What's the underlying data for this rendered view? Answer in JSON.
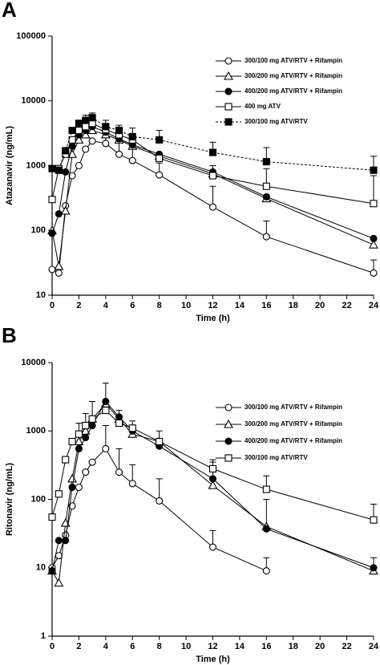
{
  "chart_data": [
    {
      "type": "line",
      "panel": "A",
      "ylabel": "Atazanavir (ng/mL)",
      "xlabel": "Time (h)",
      "log_y": true,
      "legend": "upper right",
      "xlim": [
        0,
        24
      ],
      "xticks": [
        0,
        2,
        4,
        6,
        8,
        10,
        12,
        14,
        16,
        18,
        20,
        22,
        24
      ],
      "ylim": [
        10,
        100000
      ],
      "yticks": [
        10,
        100,
        1000,
        10000,
        100000
      ],
      "x": [
        0,
        0.5,
        1,
        1.5,
        2,
        2.5,
        3,
        4,
        5,
        6,
        8,
        12,
        16,
        24
      ],
      "series": [
        {
          "name": "300/100 mg ATV/RTV + Rifampin",
          "color": "#000000",
          "marker": "circle-open",
          "dashed": false,
          "values": [
            25,
            22,
            240,
            700,
            1000,
            1800,
            2400,
            2200,
            1500,
            1200,
            720,
            230,
            80,
            22
          ],
          "upper": [
            null,
            null,
            null,
            null,
            null,
            null,
            null,
            3100,
            2300,
            1800,
            1100,
            480,
            140,
            35
          ]
        },
        {
          "name": "300/200 mg ATV/RTV + Rifampin",
          "color": "#000000",
          "marker": "triangle-open",
          "dashed": false,
          "values": [
            100,
            28,
            200,
            1500,
            2500,
            3000,
            3500,
            3000,
            2500,
            2000,
            1400,
            750,
            310,
            60
          ]
        },
        {
          "name": "400/200 mg ATV/RTV + Rifampin",
          "color": "#000000",
          "marker": "circle-filled",
          "dashed": false,
          "values": [
            90,
            180,
            800,
            2000,
            3000,
            3500,
            4000,
            3300,
            2600,
            2100,
            1500,
            800,
            330,
            75
          ]
        },
        {
          "name": "400 mg ATV",
          "color": "#000000",
          "marker": "square-open",
          "dashed": false,
          "values": [
            300,
            900,
            1500,
            2500,
            3500,
            4000,
            4500,
            3600,
            3000,
            2500,
            1300,
            700,
            480,
            260
          ],
          "upper": [
            null,
            null,
            null,
            null,
            null,
            null,
            null,
            null,
            null,
            null,
            null,
            1000,
            900,
            700
          ]
        },
        {
          "name": "300/100 mg ATV/RTV",
          "color": "#000000",
          "marker": "square-filled",
          "dashed": true,
          "values": [
            900,
            850,
            1700,
            3500,
            4500,
            5000,
            5500,
            4000,
            3500,
            2800,
            2500,
            1600,
            1150,
            850
          ],
          "upper": [
            null,
            null,
            null,
            null,
            null,
            6000,
            6500,
            5000,
            4200,
            3800,
            3500,
            2300,
            1900,
            1400
          ]
        }
      ]
    },
    {
      "type": "line",
      "panel": "B",
      "ylabel": "Ritonavir (ng/mL)",
      "xlabel": "Time (h)",
      "log_y": true,
      "legend": "upper right",
      "xlim": [
        0,
        24
      ],
      "xticks": [
        0,
        2,
        4,
        6,
        8,
        10,
        12,
        14,
        16,
        18,
        20,
        22,
        24
      ],
      "ylim": [
        1,
        10000
      ],
      "yticks": [
        1,
        10,
        100,
        1000,
        10000
      ],
      "x": [
        0,
        0.5,
        1,
        1.5,
        2,
        2.5,
        3,
        4,
        5,
        6,
        8,
        12,
        16,
        24
      ],
      "series": [
        {
          "name": "300/100 mg ATV/RTV + Rifampin",
          "color": "#000000",
          "marker": "circle-open",
          "dashed": false,
          "values": [
            10,
            15,
            30,
            80,
            150,
            250,
            350,
            550,
            250,
            170,
            95,
            20,
            9,
            null
          ],
          "upper": [
            null,
            null,
            null,
            null,
            null,
            null,
            null,
            1200,
            550,
            320,
            200,
            35,
            14,
            null
          ]
        },
        {
          "name": "300/200 mg ATV/RTV + Rifampin",
          "color": "#000000",
          "marker": "triangle-open",
          "dashed": false,
          "values": [
            9,
            6,
            45,
            200,
            700,
            1000,
            1500,
            2500,
            1500,
            900,
            700,
            160,
            40,
            9
          ],
          "upper": [
            null,
            null,
            null,
            null,
            1300,
            1800,
            2700,
            5000,
            2000,
            1400,
            1000,
            380,
            100,
            14
          ]
        },
        {
          "name": "400/200 mg ATV/RTV + Rifampin",
          "color": "#000000",
          "marker": "circle-filled",
          "dashed": false,
          "values": [
            9,
            25,
            25,
            150,
            550,
            800,
            1200,
            2700,
            1600,
            1000,
            600,
            200,
            37,
            10
          ]
        },
        {
          "name": "300/100 mg ATV/RTV",
          "color": "#000000",
          "marker": "square-open",
          "dashed": false,
          "values": [
            55,
            120,
            380,
            700,
            900,
            1200,
            1500,
            2000,
            1300,
            1100,
            700,
            280,
            140,
            50
          ],
          "upper": [
            null,
            null,
            null,
            null,
            null,
            null,
            null,
            null,
            null,
            null,
            null,
            350,
            220,
            85
          ]
        }
      ]
    }
  ]
}
